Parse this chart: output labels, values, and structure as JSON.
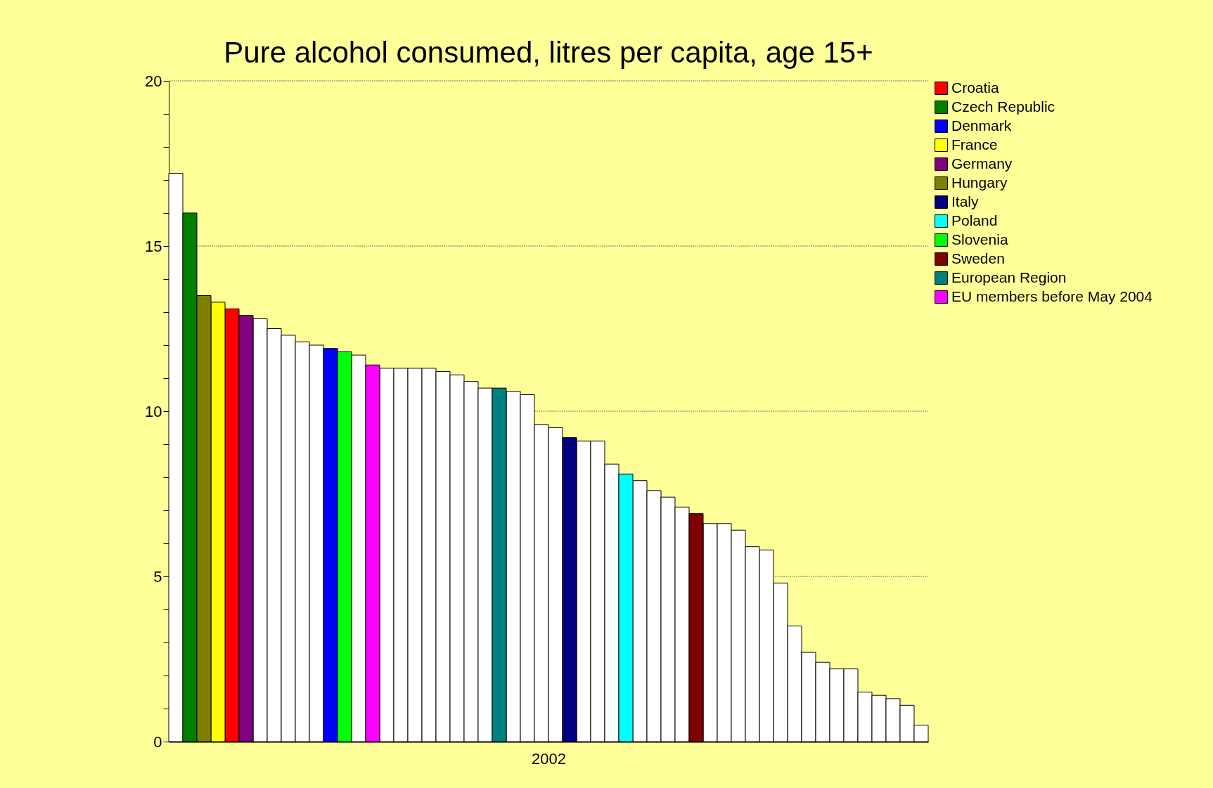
{
  "chart_data": {
    "type": "bar",
    "title": "Pure alcohol consumed, litres per capita, age 15+",
    "xlabel": "2002",
    "categories": [
      null,
      null,
      null,
      null,
      null,
      null,
      null,
      null,
      null,
      null,
      null,
      null,
      null,
      null,
      null,
      null,
      null,
      null,
      null,
      null,
      null,
      null,
      null,
      null,
      null,
      null,
      null,
      null,
      null,
      null,
      null,
      null,
      null,
      null,
      null,
      null,
      null,
      null,
      null,
      null,
      null,
      null,
      null,
      null,
      null,
      null,
      null,
      null,
      null,
      null,
      null,
      null,
      null,
      null
    ],
    "series": [
      {
        "color": "#ffffff",
        "values": [
          17.2,
          null,
          null,
          null,
          null,
          null,
          12.8,
          12.5,
          12.3,
          12.1,
          12.0,
          null,
          null,
          11.7,
          null,
          11.3,
          11.3,
          11.3,
          11.3,
          11.2,
          11.1,
          10.9,
          10.7,
          null,
          10.6,
          10.5,
          9.6,
          9.5,
          null,
          9.1,
          9.1,
          8.4,
          null,
          7.9,
          7.6,
          7.4,
          7.1,
          null,
          6.6,
          6.6,
          6.4,
          5.9,
          5.8,
          4.8,
          3.5,
          2.7,
          2.4,
          2.2,
          2.2,
          1.5,
          1.4,
          1.3,
          1.1,
          0.5
        ]
      },
      {
        "name": "Croatia",
        "color": "#ff0000",
        "values": [
          null,
          null,
          null,
          null,
          13.1,
          null,
          null,
          null,
          null,
          null,
          null,
          null,
          null,
          null,
          null,
          null,
          null,
          null,
          null,
          null,
          null,
          null,
          null,
          null,
          null,
          null,
          null,
          null,
          null,
          null,
          null,
          null,
          null,
          null,
          null,
          null,
          null,
          null,
          null,
          null,
          null,
          null,
          null,
          null,
          null,
          null,
          null,
          null,
          null,
          null,
          null,
          null,
          null,
          null
        ]
      },
      {
        "name": "Czech Republic",
        "color": "#008000",
        "values": [
          null,
          16.0,
          null,
          null,
          null,
          null,
          null,
          null,
          null,
          null,
          null,
          null,
          null,
          null,
          null,
          null,
          null,
          null,
          null,
          null,
          null,
          null,
          null,
          null,
          null,
          null,
          null,
          null,
          null,
          null,
          null,
          null,
          null,
          null,
          null,
          null,
          null,
          null,
          null,
          null,
          null,
          null,
          null,
          null,
          null,
          null,
          null,
          null,
          null,
          null,
          null,
          null,
          null,
          null
        ]
      },
      {
        "name": "Denmark",
        "color": "#0000ff",
        "values": [
          null,
          null,
          null,
          null,
          null,
          null,
          null,
          null,
          null,
          null,
          null,
          11.9,
          null,
          null,
          null,
          null,
          null,
          null,
          null,
          null,
          null,
          null,
          null,
          null,
          null,
          null,
          null,
          null,
          null,
          null,
          null,
          null,
          null,
          null,
          null,
          null,
          null,
          null,
          null,
          null,
          null,
          null,
          null,
          null,
          null,
          null,
          null,
          null,
          null,
          null,
          null,
          null,
          null,
          null
        ]
      },
      {
        "name": "France",
        "color": "#ffff00",
        "values": [
          null,
          null,
          null,
          13.3,
          null,
          null,
          null,
          null,
          null,
          null,
          null,
          null,
          null,
          null,
          null,
          null,
          null,
          null,
          null,
          null,
          null,
          null,
          null,
          null,
          null,
          null,
          null,
          null,
          null,
          null,
          null,
          null,
          null,
          null,
          null,
          null,
          null,
          null,
          null,
          null,
          null,
          null,
          null,
          null,
          null,
          null,
          null,
          null,
          null,
          null,
          null,
          null,
          null,
          null
        ]
      },
      {
        "name": "Germany",
        "color": "#800080",
        "values": [
          null,
          null,
          null,
          null,
          null,
          12.9,
          null,
          null,
          null,
          null,
          null,
          null,
          null,
          null,
          null,
          null,
          null,
          null,
          null,
          null,
          null,
          null,
          null,
          null,
          null,
          null,
          null,
          null,
          null,
          null,
          null,
          null,
          null,
          null,
          null,
          null,
          null,
          null,
          null,
          null,
          null,
          null,
          null,
          null,
          null,
          null,
          null,
          null,
          null,
          null,
          null,
          null,
          null,
          null
        ]
      },
      {
        "name": "Hungary",
        "color": "#808000",
        "values": [
          null,
          null,
          13.5,
          null,
          null,
          null,
          null,
          null,
          null,
          null,
          null,
          null,
          null,
          null,
          null,
          null,
          null,
          null,
          null,
          null,
          null,
          null,
          null,
          null,
          null,
          null,
          null,
          null,
          null,
          null,
          null,
          null,
          null,
          null,
          null,
          null,
          null,
          null,
          null,
          null,
          null,
          null,
          null,
          null,
          null,
          null,
          null,
          null,
          null,
          null,
          null,
          null,
          null,
          null
        ]
      },
      {
        "name": "Italy",
        "color": "#000080",
        "values": [
          null,
          null,
          null,
          null,
          null,
          null,
          null,
          null,
          null,
          null,
          null,
          null,
          null,
          null,
          null,
          null,
          null,
          null,
          null,
          null,
          null,
          null,
          null,
          null,
          null,
          null,
          null,
          null,
          9.2,
          null,
          null,
          null,
          null,
          null,
          null,
          null,
          null,
          null,
          null,
          null,
          null,
          null,
          null,
          null,
          null,
          null,
          null,
          null,
          null,
          null,
          null,
          null,
          null,
          null
        ]
      },
      {
        "name": "Poland",
        "color": "#00ffff",
        "values": [
          null,
          null,
          null,
          null,
          null,
          null,
          null,
          null,
          null,
          null,
          null,
          null,
          null,
          null,
          null,
          null,
          null,
          null,
          null,
          null,
          null,
          null,
          null,
          null,
          null,
          null,
          null,
          null,
          null,
          null,
          null,
          null,
          8.1,
          null,
          null,
          null,
          null,
          null,
          null,
          null,
          null,
          null,
          null,
          null,
          null,
          null,
          null,
          null,
          null,
          null,
          null,
          null,
          null,
          null
        ]
      },
      {
        "name": "Slovenia",
        "color": "#00ff00",
        "values": [
          null,
          null,
          null,
          null,
          null,
          null,
          null,
          null,
          null,
          null,
          null,
          null,
          11.8,
          null,
          null,
          null,
          null,
          null,
          null,
          null,
          null,
          null,
          null,
          null,
          null,
          null,
          null,
          null,
          null,
          null,
          null,
          null,
          null,
          null,
          null,
          null,
          null,
          null,
          null,
          null,
          null,
          null,
          null,
          null,
          null,
          null,
          null,
          null,
          null,
          null,
          null,
          null,
          null,
          null
        ]
      },
      {
        "name": "Sweden",
        "color": "#800000",
        "values": [
          null,
          null,
          null,
          null,
          null,
          null,
          null,
          null,
          null,
          null,
          null,
          null,
          null,
          null,
          null,
          null,
          null,
          null,
          null,
          null,
          null,
          null,
          null,
          null,
          null,
          null,
          null,
          null,
          null,
          null,
          null,
          null,
          null,
          null,
          null,
          null,
          null,
          6.9,
          null,
          null,
          null,
          null,
          null,
          null,
          null,
          null,
          null,
          null,
          null,
          null,
          null,
          null,
          null,
          null
        ]
      },
      {
        "name": "European Region",
        "color": "#008080",
        "values": [
          null,
          null,
          null,
          null,
          null,
          null,
          null,
          null,
          null,
          null,
          null,
          null,
          null,
          null,
          null,
          null,
          null,
          null,
          null,
          null,
          null,
          null,
          null,
          10.7,
          null,
          null,
          null,
          null,
          null,
          null,
          null,
          null,
          null,
          null,
          null,
          null,
          null,
          null,
          null,
          null,
          null,
          null,
          null,
          null,
          null,
          null,
          null,
          null,
          null,
          null,
          null,
          null,
          null,
          null
        ]
      },
      {
        "name": "EU members before May 2004",
        "color": "#ff00ff",
        "values": [
          null,
          null,
          null,
          null,
          null,
          null,
          null,
          null,
          null,
          null,
          null,
          null,
          null,
          null,
          11.4,
          null,
          null,
          null,
          null,
          null,
          null,
          null,
          null,
          null,
          null,
          null,
          null,
          null,
          null,
          null,
          null,
          null,
          null,
          null,
          null,
          null,
          null,
          null,
          null,
          null,
          null,
          null,
          null,
          null,
          null,
          null,
          null,
          null,
          null,
          null,
          null,
          null,
          null,
          null
        ]
      }
    ],
    "ylim": [
      0,
      20
    ],
    "yticks": [
      0,
      {
        "value": 1,
        "label": null
      },
      {
        "value": 2,
        "label": null
      },
      {
        "value": 3,
        "label": null
      },
      {
        "value": 4,
        "label": null
      },
      5,
      {
        "value": 6,
        "label": null
      },
      {
        "value": 7,
        "label": null
      },
      {
        "value": 8,
        "label": null
      },
      {
        "value": 9,
        "label": null
      },
      10,
      {
        "value": 11,
        "label": null
      },
      {
        "value": 12,
        "label": null
      },
      {
        "value": 13,
        "label": null
      },
      {
        "value": 14,
        "label": null
      },
      15,
      {
        "value": 16,
        "label": null
      },
      {
        "value": 17,
        "label": null
      },
      {
        "value": 18,
        "label": null
      },
      {
        "value": 19,
        "label": null
      },
      20
    ],
    "grid": "y",
    "legend": "right"
  }
}
